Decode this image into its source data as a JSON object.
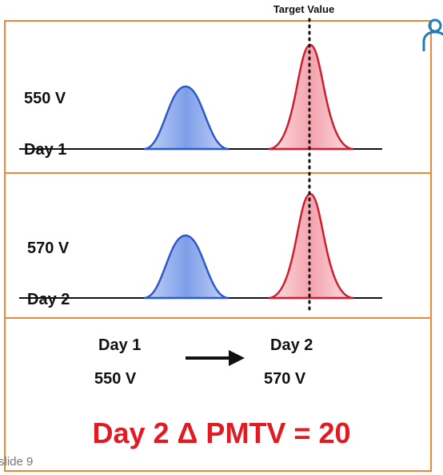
{
  "header": {
    "target_label": "Target Value"
  },
  "panels": [
    {
      "voltage": "550 V",
      "day": "Day 1"
    },
    {
      "voltage": "570 V",
      "day": "Day 2"
    }
  ],
  "comparison": {
    "from_day": "Day 1",
    "from_voltage": "550 V",
    "to_day": "Day 2",
    "to_voltage": "570 V"
  },
  "result": "Day 2 Δ PMTV = 20",
  "slide_label": "slide 9",
  "colors": {
    "frame": "#e8893a",
    "blue_peak": "#2f59c9",
    "red_peak": "#cc1f2e",
    "result_text": "#e11b22"
  },
  "icons": [
    "user-icon",
    "arrow-right-icon"
  ]
}
